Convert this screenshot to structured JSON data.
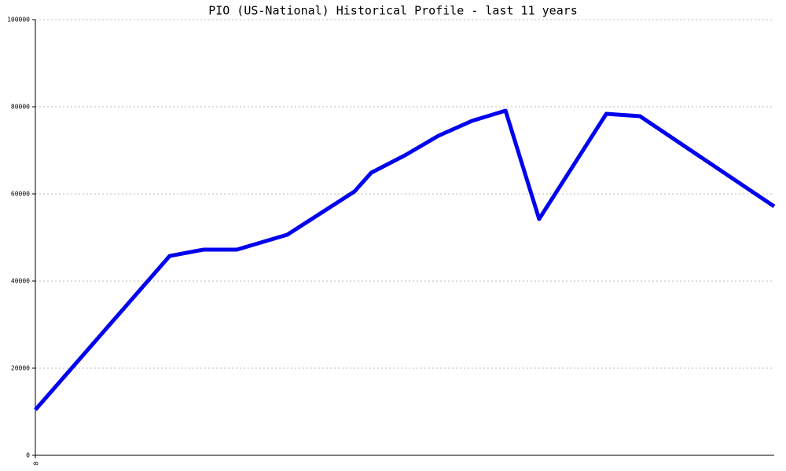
{
  "chart_data": {
    "type": "line",
    "title": "PIO (US-National) Historical Profile - last 11 years",
    "x": [
      0,
      24,
      30,
      36,
      45,
      57,
      60,
      66,
      72,
      78,
      84,
      90,
      102,
      108,
      132
    ],
    "series": [
      {
        "color": "#0000ee",
        "values": [
          10450,
          45760,
          47200,
          47200,
          50630,
          60540,
          64860,
          68830,
          73330,
          76760,
          79100,
          54230,
          78380,
          77840,
          57120
        ]
      }
    ],
    "xlim": [
      0,
      132
    ],
    "xticks": [
      0
    ],
    "ylim": [
      0,
      100000
    ],
    "yticks": [
      0,
      20000,
      40000,
      60000,
      80000,
      100000
    ],
    "grid": true
  }
}
